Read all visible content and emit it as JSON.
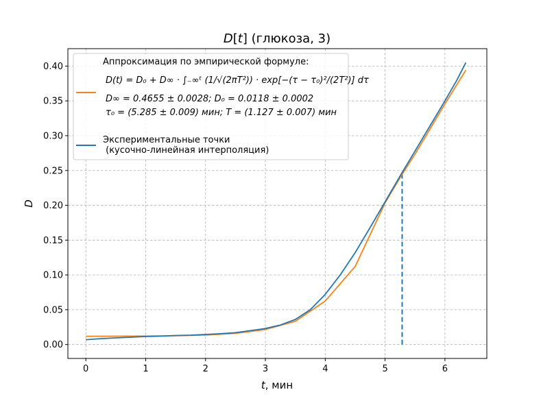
{
  "chart_data": {
    "type": "line",
    "title": "D[t] (глюкоза, 3)",
    "xlabel": "t, мин",
    "ylabel": "D",
    "xlim": [
      -0.3,
      6.7
    ],
    "ylim": [
      -0.02,
      0.425
    ],
    "xticks": [
      "0",
      "1",
      "2",
      "3",
      "4",
      "5",
      "6"
    ],
    "yticks": [
      "0.00",
      "0.05",
      "0.10",
      "0.15",
      "0.20",
      "0.25",
      "0.30",
      "0.35",
      "0.40"
    ],
    "grid": true,
    "legend_position": "top-left",
    "series": [
      {
        "name": "Аппроксимация по эмпирической формуле:",
        "color": "#ff7f0e",
        "legend_lines": [
          "D(t) = D₀ + D∞ · ∫₋∞ᵗ (1/√(2πT²)) · exp[−(τ − τ₀)²/(2T²)] dτ",
          "D∞ = 0.4655 ± 0.0028; D₀ = 0.0118 ± 0.0002",
          "τ₀ = (5.285 ± 0.009) мин; T = (1.127 ± 0.007) мин"
        ],
        "params": {
          "D_inf": 0.4655,
          "D0": 0.0118,
          "tau0": 5.285,
          "T": 1.127
        },
        "x": [
          0,
          0.5,
          1.0,
          1.5,
          2.0,
          2.5,
          3.0,
          3.5,
          4.0,
          4.5,
          5.0,
          5.285,
          5.5,
          6.0,
          6.35
        ],
        "y": [
          0.0119,
          0.012,
          0.0122,
          0.0126,
          0.0136,
          0.016,
          0.0215,
          0.0335,
          0.0625,
          0.1122,
          0.2034,
          0.2445,
          0.2736,
          0.3457,
          0.3942
        ]
      },
      {
        "name": "Экспериментальные точки (кусочно-линейная интерполяция)",
        "legend_lines": [
          "Экспериментальные точки",
          " (кусочно-линейная интерполяция)"
        ],
        "color": "#1f77b4",
        "x": [
          0,
          0.25,
          0.5,
          0.75,
          1.0,
          1.25,
          1.5,
          1.75,
          2.0,
          2.25,
          2.5,
          2.75,
          3.0,
          3.25,
          3.5,
          3.75,
          4.0,
          4.25,
          4.5,
          4.75,
          5.0,
          5.25,
          5.5,
          5.75,
          6.0,
          6.2,
          6.35
        ],
        "y": [
          0.007,
          0.0085,
          0.0095,
          0.0105,
          0.0115,
          0.012,
          0.013,
          0.0135,
          0.0145,
          0.0155,
          0.017,
          0.02,
          0.023,
          0.028,
          0.036,
          0.05,
          0.072,
          0.1,
          0.132,
          0.168,
          0.205,
          0.242,
          0.278,
          0.314,
          0.35,
          0.38,
          0.405
        ]
      }
    ],
    "vline": {
      "x": 5.285,
      "y_from": 0.0,
      "y_to": 0.2445,
      "color": "#1f77b4",
      "style": "dashed"
    }
  }
}
